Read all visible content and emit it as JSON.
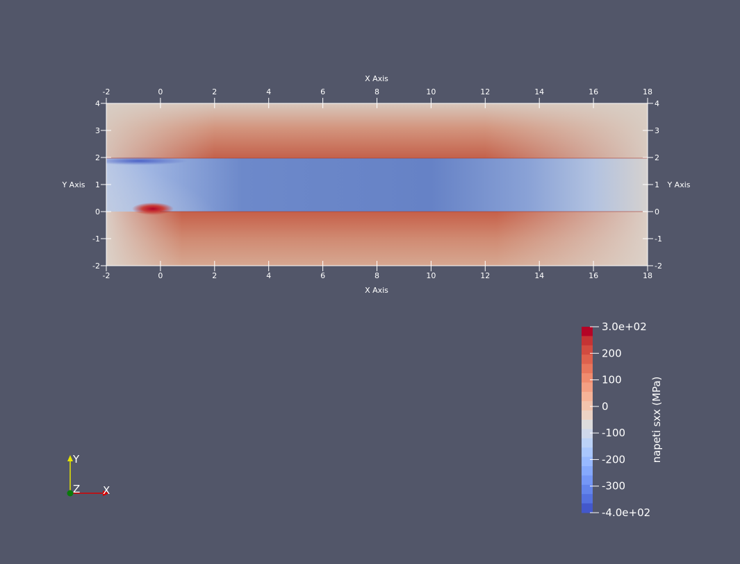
{
  "axes": {
    "x_title": "X Axis",
    "y_title": "Y Axis",
    "x_ticks": [
      "-2",
      "0",
      "2",
      "4",
      "6",
      "8",
      "10",
      "12",
      "14",
      "16",
      "18"
    ],
    "y_ticks": [
      "4",
      "3",
      "2",
      "1",
      "0",
      "-1",
      "-2"
    ],
    "x_range": [
      -2,
      18
    ],
    "y_range": [
      -2,
      4
    ]
  },
  "colorbar": {
    "title": "napeti sxx (MPa)",
    "range": [
      -400,
      300
    ],
    "labels": [
      "3.0e+02",
      "200",
      "100",
      "0",
      "-100",
      "-200",
      "-300",
      "-4.0e+02"
    ],
    "colors": [
      "#b40426",
      "#c53334",
      "#d24b40",
      "#de614d",
      "#e8765c",
      "#f08b6e",
      "#f49f83",
      "#f6b398",
      "#f3c4ad",
      "#ecd3c5",
      "#dddcdc",
      "#cfd8eb",
      "#bcd2f7",
      "#aac7fd",
      "#98b9ff",
      "#86a9fc",
      "#7597f6",
      "#6384eb",
      "#5471df",
      "#4358cb"
    ]
  },
  "orientation": {
    "y_label": "Y",
    "z_label": "Z",
    "x_label": "X"
  },
  "colors": {
    "background": "#525669",
    "tension_high": "#c8624c",
    "tension_mid": "#d4977f",
    "neutral": "#d9cfc6",
    "compression": "#6683c6",
    "grid_line": "#ffffff"
  }
}
